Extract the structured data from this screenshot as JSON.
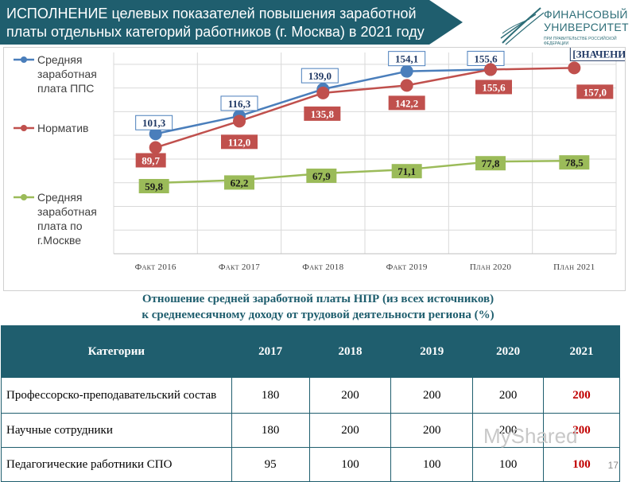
{
  "header": {
    "title_highlight": "Исполнение",
    "title_rest": " целевых показателей повышения заработной платы отдельных категорий работников (г. Москва) в 2021 году"
  },
  "logo": {
    "line1": "ФИНАНСОВЫЙ",
    "line2": "УНИВЕРСИТЕТ",
    "subline": "ПРИ ПРАВИТЕЛЬСТВЕ РОССИЙСКОЙ ФЕДЕРАЦИИ"
  },
  "colors": {
    "accent": "#1f5e6e",
    "pps": "#4a7ebb",
    "norm": "#c0504d",
    "moscow": "#9bbb59",
    "highlight_red": "#c00000"
  },
  "chart_data": {
    "type": "line",
    "categories": [
      "Факт 2016",
      "Факт 2017",
      "Факт 2018",
      "Факт 2019",
      "План 2020",
      "План 2021"
    ],
    "ylim": [
      0,
      170
    ],
    "grid": true,
    "legend_position": "left",
    "series": [
      {
        "name": "Средняя заработная плата ППС",
        "color": "#4a7ebb",
        "values": [
          101.3,
          116.3,
          139.0,
          154.1,
          155.6,
          null
        ],
        "labels": [
          "101,3",
          "116,3",
          "139,0",
          "154,1",
          "155,6",
          "[ЗНАЧЕНИЕ]"
        ],
        "label_style": "outline"
      },
      {
        "name": "Норматив",
        "color": "#c0504d",
        "values": [
          89.7,
          112.0,
          135.8,
          142.2,
          155.6,
          157.0
        ],
        "labels": [
          "89,7",
          "112,0",
          "135,8",
          "142,2",
          "155,6",
          "157,0"
        ],
        "label_style": "fill"
      },
      {
        "name": "Средняя заработная плата по г.Москве",
        "color": "#9bbb59",
        "values": [
          59.8,
          62.2,
          67.9,
          71.1,
          77.8,
          78.5
        ],
        "labels": [
          "59,8",
          "62,2",
          "67,9",
          "71,1",
          "77,8",
          "78,5"
        ],
        "label_style": "fill"
      }
    ]
  },
  "legend": {
    "pps": "Средняя заработная плата ППС",
    "norm": "Норматив",
    "moscow": "Средняя заработная плата по г.Москве"
  },
  "ratio_title_line1": "Отношение средней заработной платы НПР (из всех источников)",
  "ratio_title_line2": "к среднемесячному доходу от трудовой деятельности региона (%)",
  "table": {
    "headers": [
      "Категории",
      "2017",
      "2018",
      "2019",
      "2020",
      "2021"
    ],
    "rows": [
      [
        "Профессорско-преподавательский состав",
        "180",
        "200",
        "200",
        "200",
        "200"
      ],
      [
        "Научные сотрудники",
        "180",
        "200",
        "200",
        "200",
        "200"
      ],
      [
        "Педагогические работники СПО",
        "95",
        "100",
        "100",
        "100",
        "100"
      ]
    ]
  },
  "watermark": "MyShared",
  "page_number": "17"
}
